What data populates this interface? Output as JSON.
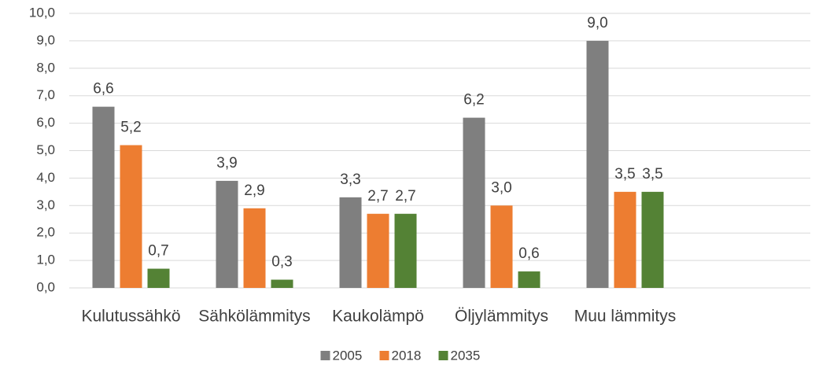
{
  "chart_data": {
    "type": "bar",
    "categories": [
      "Kulutussähkö",
      "Sähkölämmitys",
      "Kaukolämpö",
      "Öljylämmitys",
      "Muu lämmitys",
      null
    ],
    "series": [
      {
        "name": "2005",
        "color": "#7f7f7f",
        "values": [
          6.6,
          3.9,
          3.3,
          6.2,
          9.0,
          null
        ],
        "value_labels": [
          "6,6",
          "3,9",
          "3,3",
          "6,2",
          "9,0",
          null
        ]
      },
      {
        "name": "2018",
        "color": "#ed7d31",
        "values": [
          5.2,
          2.9,
          2.7,
          3.0,
          3.5,
          null
        ],
        "value_labels": [
          "5,2",
          "2,9",
          "2,7",
          "3,0",
          "3,5",
          null
        ]
      },
      {
        "name": "2035",
        "color": "#548235",
        "values": [
          0.7,
          0.3,
          2.7,
          0.6,
          3.5,
          null
        ],
        "value_labels": [
          "0,7",
          "0,3",
          "2,7",
          "0,6",
          "3,5",
          null
        ]
      }
    ],
    "ylim": [
      0,
      10
    ],
    "yticks": [
      {
        "value": 0,
        "label": "0,0"
      },
      {
        "value": 1,
        "label": "1,0"
      },
      {
        "value": 2,
        "label": "2,0"
      },
      {
        "value": 3,
        "label": "3,0"
      },
      {
        "value": 4,
        "label": "4,0"
      },
      {
        "value": 5,
        "label": "5,0"
      },
      {
        "value": 6,
        "label": "6,0"
      },
      {
        "value": 7,
        "label": "7,0"
      },
      {
        "value": 8,
        "label": "8,0"
      },
      {
        "value": 9,
        "label": "9,0"
      },
      {
        "value": 10,
        "label": "10,0"
      }
    ],
    "grid": true,
    "legend": "bottom"
  }
}
